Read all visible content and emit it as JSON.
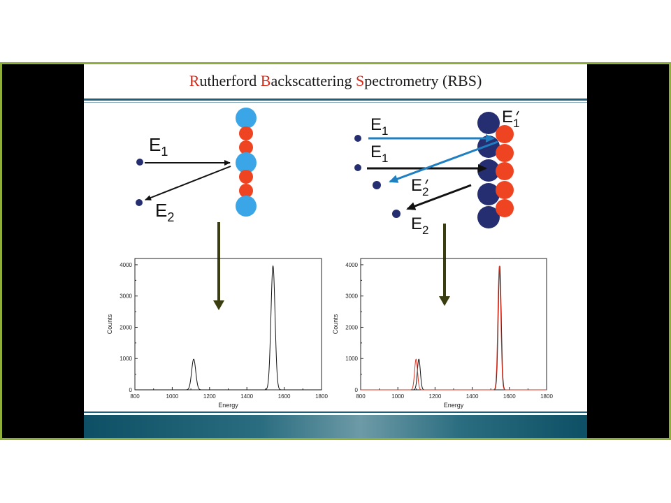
{
  "title": {
    "words": [
      {
        "initial": "R",
        "rest": "utherford "
      },
      {
        "initial": "B",
        "rest": "ackscattering "
      },
      {
        "initial": "S",
        "rest": "pectrometry (RBS)"
      }
    ],
    "initial_color": "#d42b1b"
  },
  "colors": {
    "light_atom": "#3aa6e8",
    "red_atom": "#ee4422",
    "navy_atom": "#262e72",
    "incident_arrow": "#111111",
    "blue_arrow": "#1f7fc1",
    "down_arrow": "#3a3d10",
    "red_curve": "#dd3322"
  },
  "left_diagram": {
    "incident_label": {
      "main": "E",
      "sub": "1"
    },
    "scattered_label": {
      "main": "E",
      "sub": "2"
    }
  },
  "right_diagram": {
    "labels": [
      {
        "main": "E",
        "sub": "1",
        "prime": false
      },
      {
        "main": "E",
        "sub": "1",
        "prime": true
      },
      {
        "main": "E",
        "sub": "1",
        "prime": false
      },
      {
        "main": "E",
        "sub": "2",
        "prime": true
      },
      {
        "main": "E",
        "sub": "2",
        "prime": false
      }
    ]
  },
  "chart_data": [
    {
      "type": "line",
      "xlabel": "Energy",
      "ylabel": "Counts",
      "xlim": [
        800,
        1800
      ],
      "ylim": [
        0,
        4200
      ],
      "xticks": [
        800,
        1000,
        1200,
        1400,
        1600,
        1800
      ],
      "yticks": [
        0,
        1000,
        2000,
        3000,
        4000
      ],
      "series": [
        {
          "color": "#111111",
          "peaks": [
            {
              "center": 1115,
              "height": 980,
              "width": 11
            },
            {
              "center": 1540,
              "height": 3960,
              "width": 11
            }
          ]
        }
      ]
    },
    {
      "type": "line",
      "xlabel": "Energy",
      "ylabel": "Counts",
      "xlim": [
        800,
        1800
      ],
      "ylim": [
        0,
        4200
      ],
      "xticks": [
        800,
        1000,
        1200,
        1400,
        1600,
        1800
      ],
      "yticks": [
        0,
        1000,
        2000,
        3000,
        4000
      ],
      "series": [
        {
          "color": "#111111",
          "peaks": [
            {
              "center": 1113,
              "height": 980,
              "width": 8
            },
            {
              "center": 1548,
              "height": 3960,
              "width": 8
            }
          ]
        },
        {
          "color": "#dd3322",
          "peaks": [
            {
              "center": 1098,
              "height": 980,
              "width": 8
            },
            {
              "center": 1546,
              "height": 3960,
              "width": 8
            }
          ]
        }
      ]
    }
  ]
}
